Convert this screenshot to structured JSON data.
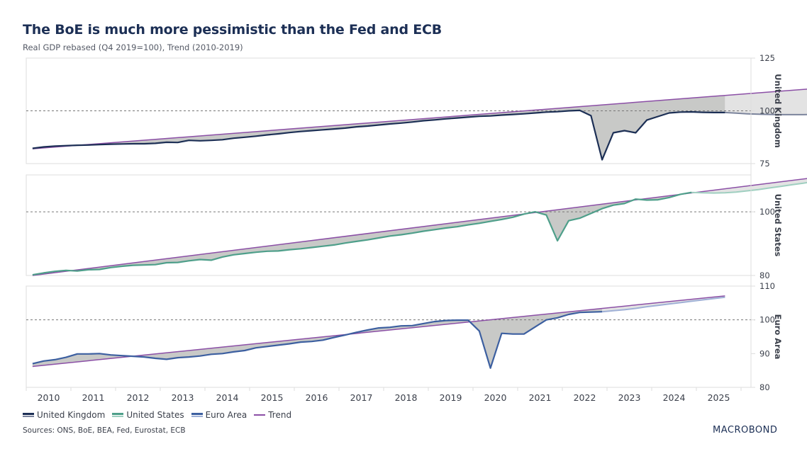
{
  "header": {
    "title": "The BoE is much more pessimistic than the Fed and ECB",
    "subtitle": "Real GDP rebased (Q4 2019=100), Trend (2010-2019)"
  },
  "legend": [
    {
      "label": "United Kingdom",
      "color": "#1c2f55",
      "forecast_color": "#7b849c"
    },
    {
      "label": "United States",
      "color": "#4e9f8a",
      "forecast_color": "#9fcfc0"
    },
    {
      "label": "Euro Area",
      "color": "#3c5fa0",
      "forecast_color": "#9fb0d6"
    },
    {
      "label": "Trend",
      "color": "#8b4fa6",
      "forecast_color": "#8b4fa6"
    }
  ],
  "footer": {
    "sources": "Sources: ONS, BoE, BEA, Fed, Eurostat, ECB",
    "logo": "MACROBOND"
  },
  "colors": {
    "gap_fill": "#c8c9c7",
    "forecast_gap_fill": "#e3e3e3",
    "trend": "#8b4fa6",
    "reference_line": "#777777",
    "axis": "#dddddd"
  },
  "chart_data": {
    "type": "line",
    "title": "The BoE is much more pessimistic than the Fed and ECB",
    "subtitle": "Real GDP rebased (Q4 2019=100), Trend (2010-2019)",
    "x_axis": {
      "ticks": [
        "2010",
        "2011",
        "2012",
        "2013",
        "2014",
        "2015",
        "2016",
        "2017",
        "2018",
        "2019",
        "2020",
        "2021",
        "2022",
        "2023",
        "2024",
        "2025"
      ],
      "range": [
        2010,
        2026
      ],
      "frequency": "quarterly",
      "start": "2010Q1"
    },
    "reference_value": 100,
    "panels": [
      {
        "name": "United Kingdom",
        "ylim": [
          75,
          125
        ],
        "yticks": [
          75,
          100,
          125
        ],
        "actual": [
          82.2,
          82.9,
          83.3,
          83.5,
          83.7,
          83.8,
          84.0,
          84.2,
          84.3,
          84.4,
          84.4,
          84.6,
          85.1,
          85.0,
          86.0,
          85.8,
          86.0,
          86.3,
          87.0,
          87.5,
          88.0,
          88.6,
          89.1,
          89.7,
          90.2,
          90.6,
          91.0,
          91.4,
          91.8,
          92.4,
          92.8,
          93.3,
          93.8,
          94.2,
          94.7,
          95.3,
          95.7,
          96.2,
          96.6,
          97.0,
          97.4,
          97.6,
          98.0,
          98.3,
          98.6,
          99.0,
          99.4,
          99.6,
          100.0,
          100.2,
          97.7,
          76.8,
          89.6,
          90.6,
          89.6,
          95.6,
          97.3,
          99.0,
          99.4,
          99.5,
          99.3,
          99.2,
          99.2
        ],
        "forecast": [
          99.2,
          98.9,
          98.6,
          98.4,
          98.3,
          98.2,
          98.2,
          98.2,
          98.3,
          98.4,
          98.6,
          98.9,
          99.2,
          99.5
        ],
        "trend_start": 82.0,
        "trend_end": 112.6
      },
      {
        "name": "United States",
        "ylim": [
          80,
          111.6
        ],
        "yticks": [
          80,
          100
        ],
        "actual": [
          80.2,
          80.8,
          81.3,
          81.6,
          81.4,
          81.8,
          81.9,
          82.5,
          82.9,
          83.2,
          83.3,
          83.4,
          84.0,
          84.1,
          84.6,
          85.0,
          84.8,
          85.8,
          86.5,
          86.9,
          87.3,
          87.6,
          87.7,
          88.1,
          88.4,
          88.8,
          89.2,
          89.6,
          90.2,
          90.7,
          91.2,
          91.8,
          92.4,
          92.8,
          93.3,
          93.9,
          94.4,
          94.9,
          95.3,
          95.9,
          96.4,
          97.0,
          97.6,
          98.3,
          99.3,
          100.0,
          99.0,
          90.9,
          97.2,
          98.0,
          99.5,
          101.0,
          102.1,
          102.6,
          104.0,
          103.7,
          103.8,
          104.5,
          105.5,
          106.1
        ],
        "forecast": [
          106.1,
          106.0,
          105.9,
          106.0,
          106.2,
          106.6,
          107.0,
          107.5,
          108.0,
          108.5,
          109.0,
          109.5,
          110.0
        ],
        "trend_start": 80.0,
        "trend_end": 111.2
      },
      {
        "name": "Euro Area",
        "ylim": [
          80,
          110
        ],
        "yticks": [
          80,
          90,
          100,
          110
        ],
        "actual": [
          87.0,
          87.8,
          88.2,
          88.9,
          89.9,
          89.9,
          90.0,
          89.6,
          89.4,
          89.2,
          89.0,
          88.6,
          88.3,
          88.8,
          89.0,
          89.3,
          89.8,
          90.0,
          90.5,
          90.9,
          91.7,
          92.1,
          92.5,
          92.9,
          93.4,
          93.6,
          94.0,
          94.8,
          95.5,
          96.3,
          97.0,
          97.6,
          97.8,
          98.2,
          98.3,
          98.9,
          99.5,
          99.8,
          99.9,
          99.9,
          96.7,
          85.7,
          96.0,
          95.8,
          95.8,
          97.9,
          100.0,
          100.6,
          101.6,
          102.2,
          102.3,
          102.4
        ],
        "forecast": [
          102.4,
          102.7,
          103.0,
          103.4,
          103.9,
          104.3,
          104.7,
          105.1,
          105.5,
          105.9,
          106.3,
          106.7
        ],
        "trend_start": 86.2,
        "trend_end": 107.1
      }
    ]
  }
}
